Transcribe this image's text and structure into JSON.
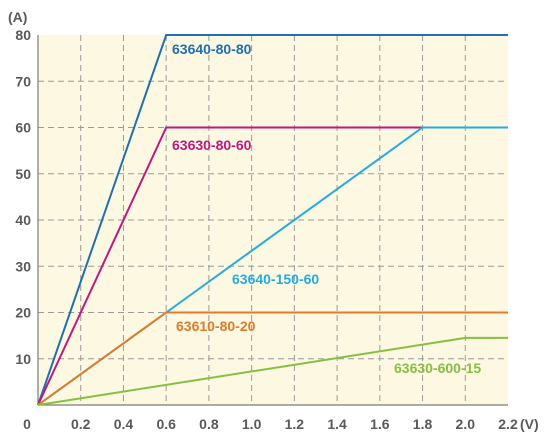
{
  "chart_data": {
    "type": "line",
    "y_unit": "(A)",
    "x_unit": "(V)",
    "xlim": [
      0,
      2.2
    ],
    "ylim": [
      0,
      80
    ],
    "x_ticks": [
      "0",
      "0.2",
      "0.4",
      "0.6",
      "0.8",
      "1.0",
      "1.2",
      "1.4",
      "1.6",
      "1.8",
      "2.0",
      "2.2"
    ],
    "y_ticks": [
      "10",
      "20",
      "30",
      "40",
      "50",
      "60",
      "70",
      "80"
    ],
    "grid": true,
    "series": [
      {
        "name": "63640-80-80",
        "color": "#1f6fb2",
        "points": [
          [
            0,
            0
          ],
          [
            0.6,
            80
          ],
          [
            2.2,
            80
          ]
        ]
      },
      {
        "name": "63630-80-60",
        "color": "#c0197e",
        "points": [
          [
            0,
            0
          ],
          [
            0.6,
            60
          ],
          [
            1.8,
            60
          ]
        ]
      },
      {
        "name": "63640-150-60",
        "color": "#27a9e1",
        "points": [
          [
            0,
            0
          ],
          [
            0.6,
            20
          ],
          [
            1.8,
            60
          ],
          [
            2.2,
            60
          ]
        ]
      },
      {
        "name": "63610-80-20",
        "color": "#e07b2a",
        "points": [
          [
            0,
            0
          ],
          [
            0.6,
            20
          ],
          [
            2.2,
            20
          ]
        ]
      },
      {
        "name": "63630-600-15",
        "color": "#86c043",
        "points": [
          [
            0,
            0
          ],
          [
            2.0,
            14.5
          ],
          [
            2.2,
            14.5
          ]
        ]
      }
    ]
  }
}
